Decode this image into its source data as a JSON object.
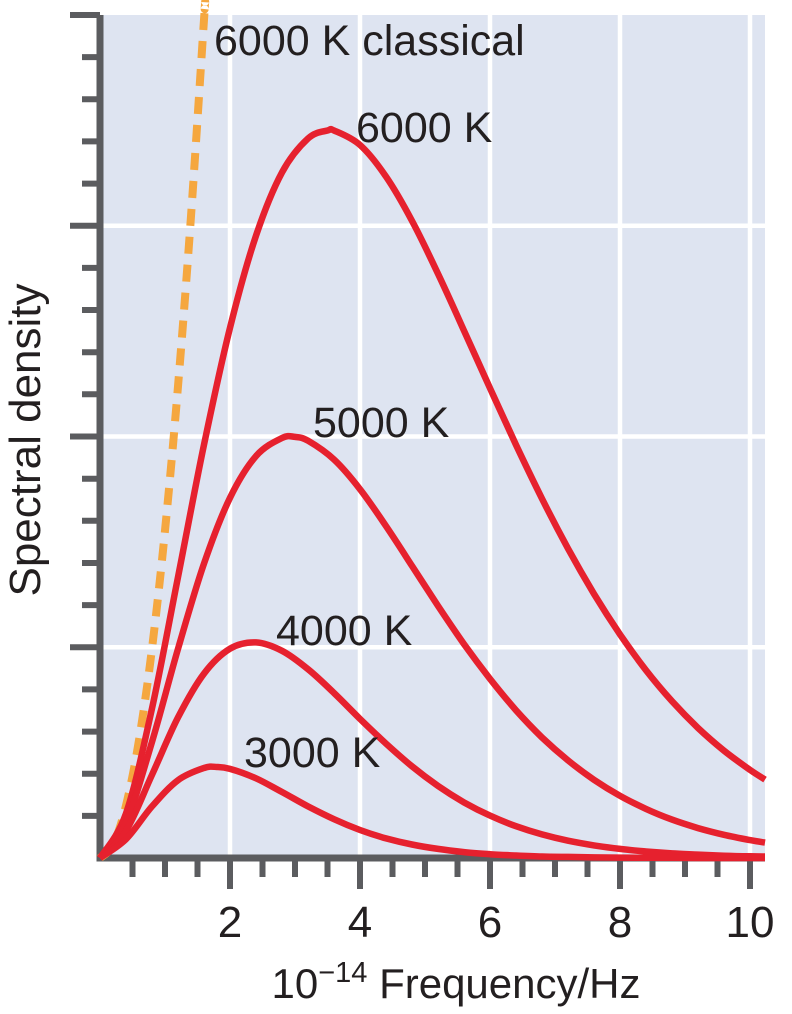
{
  "figure": {
    "description": "Black-body radiation: spectral density versus frequency for Planck curves at 3000-6000 K plus the classical (Rayleigh-Jeans) prediction at 6000 K"
  },
  "labels": {
    "classical": "6000 K classical",
    "k6000": "6000 K",
    "k5000": "5000 K",
    "k4000": "4000 K",
    "k3000": "3000 K"
  },
  "axes": {
    "x": {
      "label_base": "10",
      "label_exponent": "−14",
      "label_rest": " Frequency/Hz",
      "major_ticks": [
        2,
        4,
        6,
        8,
        10
      ],
      "tick_labels": [
        "2",
        "4",
        "6",
        "8",
        "10"
      ],
      "minor_tick_step": 0.5
    },
    "y": {
      "label": "Spectral density",
      "tick_labels": [],
      "major_tick_step": 1,
      "minor_tick_step": 0.2,
      "gridlines": [
        1,
        2,
        3
      ]
    }
  },
  "colors": {
    "plot_background": "#dee4f1",
    "gridline": "#ffffff",
    "axis": "#5b5c5f",
    "planck_curve": "#e6212e",
    "classical_curve": "#f5a73f",
    "text": "#231f20",
    "page_background": "#ffffff"
  },
  "chart_data": {
    "type": "line",
    "title": "",
    "xlabel": "10^-14 Frequency/Hz",
    "ylabel": "Spectral density",
    "xlim": [
      0,
      10.23
    ],
    "ylim": [
      0,
      4.0
    ],
    "grid": "major gridlines only, white on pale blue panel",
    "legend_position": "inline curve labels",
    "units_note": "y in axis grid divisions (arbitrary units); Planck curves with 6000 K peak = 3.45 divisions at v = 3.5e14 Hz; peaks scale as T^3",
    "series": [
      {
        "name": "6000 K classical",
        "physics": "Rayleigh-Jeans law",
        "line_style": "dashed",
        "color": "#f5a73f",
        "x": [
          0,
          0.2,
          0.4,
          0.6,
          0.8,
          1.0,
          1.2,
          1.4,
          1.6,
          1.61
        ],
        "y": [
          0,
          0.062,
          0.249,
          0.559,
          0.994,
          1.554,
          2.238,
          3.046,
          3.978,
          4.028
        ]
      },
      {
        "name": "6000 K",
        "physics": "Planck law",
        "line_style": "solid",
        "color": "#e6212e",
        "x": [
          0,
          0.4,
          0.8,
          1.2,
          1.6,
          2.0,
          2.4,
          2.8,
          3.2,
          3.5,
          3.6,
          4.0,
          4.4,
          4.8,
          5.2,
          5.6,
          6.0,
          6.4,
          6.8,
          7.2,
          7.6,
          8.0,
          8.4,
          8.8,
          9.2,
          9.6,
          10.0,
          10.23
        ],
        "y": [
          0,
          0.211,
          0.71,
          1.333,
          1.961,
          2.516,
          2.953,
          3.253,
          3.414,
          3.452,
          3.452,
          3.383,
          3.233,
          3.023,
          2.772,
          2.502,
          2.229,
          1.96,
          1.705,
          1.468,
          1.253,
          1.061,
          0.891,
          0.744,
          0.617,
          0.509,
          0.418,
          0.372
        ]
      },
      {
        "name": "5000 K",
        "physics": "Planck law",
        "line_style": "solid",
        "color": "#e6212e",
        "x": [
          0,
          0.4,
          0.8,
          1.2,
          1.6,
          2.0,
          2.4,
          2.8,
          3.0,
          3.2,
          3.6,
          4.0,
          4.4,
          4.8,
          5.2,
          5.6,
          6.0,
          6.4,
          6.8,
          7.2,
          7.6,
          8.0,
          8.4,
          8.8,
          9.2,
          9.6,
          10.0,
          10.23
        ],
        "y": [
          0,
          0.17,
          0.551,
          0.992,
          1.397,
          1.709,
          1.907,
          1.993,
          1.998,
          1.98,
          1.891,
          1.75,
          1.575,
          1.386,
          1.196,
          1.015,
          0.85,
          0.701,
          0.572,
          0.463,
          0.371,
          0.295,
          0.233,
          0.182,
          0.142,
          0.11,
          0.085,
          0.073
        ]
      },
      {
        "name": "4000 K",
        "physics": "Planck law",
        "line_style": "solid",
        "color": "#e6212e",
        "x": [
          0,
          0.4,
          0.8,
          1.2,
          1.6,
          2.0,
          2.4,
          2.8,
          3.2,
          3.6,
          4.0,
          4.4,
          4.8,
          5.2,
          5.6,
          6.0,
          6.4,
          6.8,
          7.2,
          7.6,
          8.0,
          8.4,
          8.8,
          9.2,
          9.6,
          10.0,
          10.23
        ],
        "y": [
          0,
          0.129,
          0.395,
          0.667,
          0.875,
          0.993,
          1.023,
          0.983,
          0.896,
          0.783,
          0.66,
          0.543,
          0.435,
          0.342,
          0.264,
          0.201,
          0.151,
          0.112,
          0.082,
          0.06,
          0.043,
          0.031,
          0.022,
          0.016,
          0.011,
          0.008,
          0.007
        ]
      },
      {
        "name": "3000 K",
        "physics": "Planck law",
        "line_style": "solid",
        "color": "#e6212e",
        "x": [
          0,
          0.4,
          0.8,
          1.2,
          1.6,
          1.8,
          2.0,
          2.4,
          2.8,
          3.2,
          3.6,
          4.0,
          4.4,
          4.8,
          5.2,
          5.6,
          6.0,
          6.4,
          6.8,
          7.2,
          7.6,
          8.0,
          8.4,
          8.8,
          9.2,
          9.6,
          10.0,
          10.23
        ],
        "y": [
          0,
          0.089,
          0.245,
          0.369,
          0.427,
          0.432,
          0.423,
          0.378,
          0.313,
          0.245,
          0.184,
          0.133,
          0.093,
          0.064,
          0.043,
          0.028,
          0.018,
          0.012,
          0.007,
          0.005,
          0.003,
          0.002,
          0.001,
          0.001,
          0.0,
          0.0,
          0.0,
          0.0
        ]
      }
    ]
  }
}
